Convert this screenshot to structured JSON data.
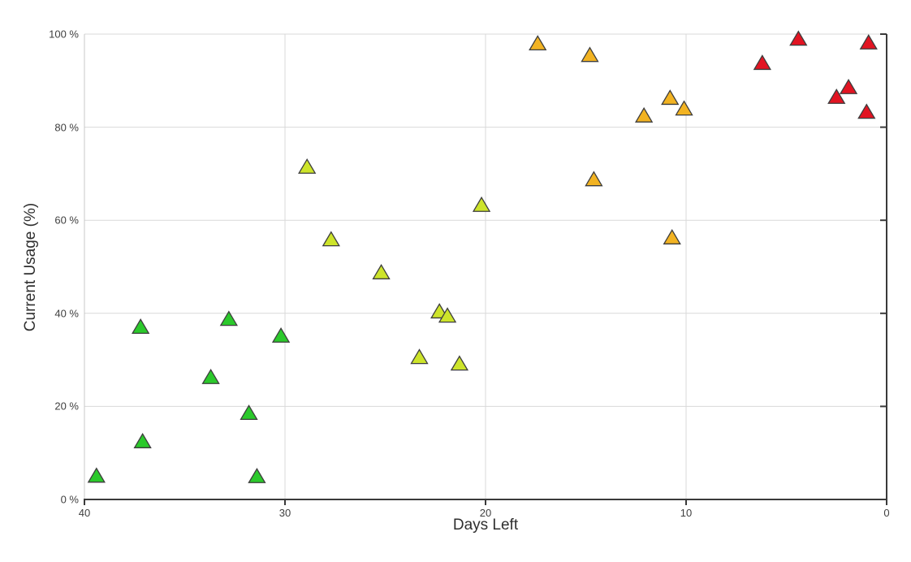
{
  "chart_data": {
    "type": "scatter",
    "title": "",
    "xlabel": "Days Left",
    "ylabel": "Current Usage (%)",
    "marker": "triangle-up",
    "grid": true,
    "legend": "none",
    "x_axis": {
      "min": 0,
      "max": 40,
      "reversed": true,
      "ticks": [
        40,
        30,
        20,
        10,
        0
      ],
      "tick_labels": [
        "40",
        "30",
        "20",
        "10",
        "0"
      ]
    },
    "y_axis": {
      "min": 0,
      "max": 100,
      "ticks": [
        0,
        20,
        40,
        60,
        80,
        100
      ],
      "tick_labels": [
        "0 %",
        "20 %",
        "40 %",
        "60 %",
        "80 %",
        "100 %"
      ]
    },
    "series": [
      {
        "name": "green",
        "color": "#2bc92b",
        "points": [
          [
            39.4,
            5.2
          ],
          [
            37.1,
            12.6
          ],
          [
            37.2,
            37.2
          ],
          [
            33.7,
            26.4
          ],
          [
            32.8,
            38.9
          ],
          [
            31.8,
            18.7
          ],
          [
            31.4,
            5.1
          ],
          [
            30.2,
            35.3
          ]
        ]
      },
      {
        "name": "yellow-green",
        "color": "#cde42a",
        "points": [
          [
            28.9,
            71.6
          ],
          [
            27.7,
            56.0
          ],
          [
            25.2,
            48.9
          ],
          [
            23.3,
            30.7
          ],
          [
            22.3,
            40.5
          ],
          [
            21.9,
            39.6
          ],
          [
            21.3,
            29.3
          ],
          [
            20.2,
            63.4
          ]
        ]
      },
      {
        "name": "orange",
        "color": "#f2b322",
        "points": [
          [
            17.4,
            98.1
          ],
          [
            14.8,
            95.6
          ],
          [
            14.6,
            68.9
          ],
          [
            12.1,
            82.6
          ],
          [
            10.8,
            86.4
          ],
          [
            10.1,
            84.1
          ],
          [
            10.7,
            56.4
          ]
        ]
      },
      {
        "name": "red",
        "color": "#e21422",
        "points": [
          [
            6.2,
            93.9
          ],
          [
            4.4,
            99.1
          ],
          [
            2.5,
            86.6
          ],
          [
            1.9,
            88.7
          ],
          [
            1.0,
            83.4
          ],
          [
            0.9,
            98.3
          ]
        ]
      }
    ],
    "style": {
      "background": "#ffffff",
      "grid_color": "#d9d9d9",
      "left_axis_color": "#c8c8c8",
      "axis_color": "#3a3a3a",
      "marker_stroke": "#3d3d3d",
      "tick_label_color": "#404040",
      "axis_title_color": "#2f2f2f"
    }
  }
}
